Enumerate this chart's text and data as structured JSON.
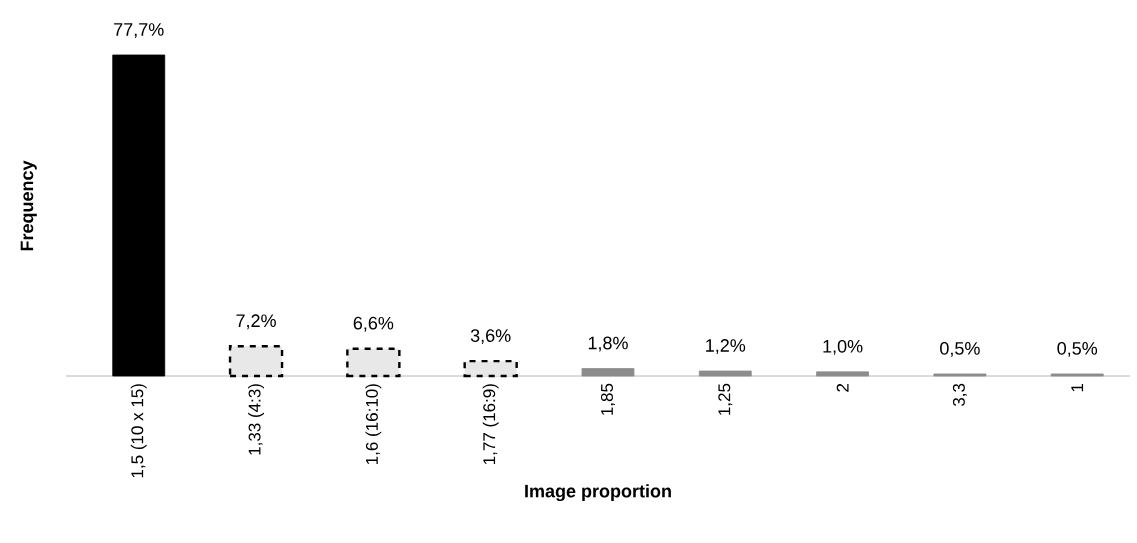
{
  "chart_data": {
    "type": "bar",
    "xlabel": "Image proportion",
    "ylabel": "Frequency",
    "categories": [
      "1,5 (10 x 15)",
      "1,33 (4:3)",
      "1,6 (16:10)",
      "1,77 (16:9)",
      "1,85",
      "1,25",
      "2",
      "3,3",
      "1"
    ],
    "series": [
      {
        "color": "#000000",
        "values": [
          77.7,
          null,
          null,
          null,
          null,
          null,
          null,
          null,
          null
        ],
        "value_labels": [
          "77,7%",
          null,
          null,
          null,
          null,
          null,
          null,
          null,
          null
        ]
      },
      {
        "color": "#e8e8e8",
        "line_style": "dashed",
        "values": [
          null,
          7.2,
          6.6,
          3.6,
          null,
          null,
          null,
          null,
          null
        ],
        "value_labels": [
          null,
          "7,2%",
          "6,6%",
          "3,6%",
          null,
          null,
          null,
          null,
          null
        ]
      },
      {
        "color": "#8c8c8c",
        "values": [
          null,
          null,
          null,
          null,
          1.8,
          1.2,
          1.0,
          0.5,
          0.5
        ],
        "value_labels": [
          null,
          null,
          null,
          null,
          "1,8%",
          "1,2%",
          "1,0%",
          "0,5%",
          "0,5%"
        ]
      }
    ]
  }
}
